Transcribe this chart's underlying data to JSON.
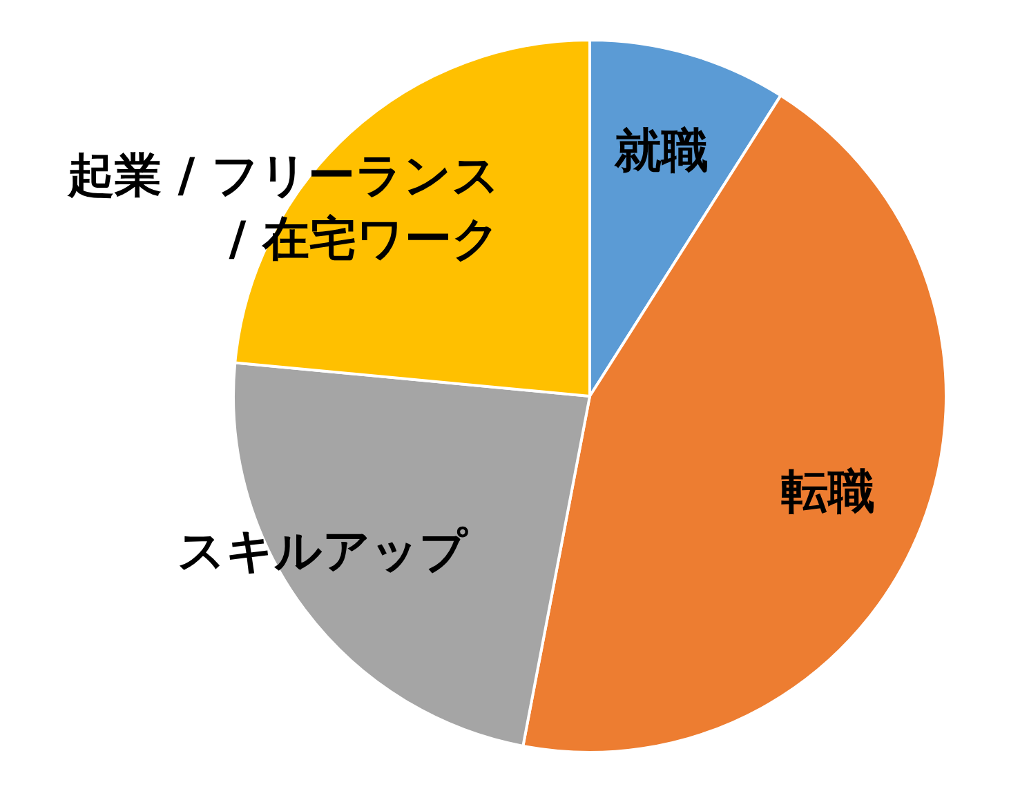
{
  "chart_data": {
    "type": "pie",
    "categories": [
      "就職",
      "転職",
      "スキルアップ",
      "起業 / フリーランス / 在宅ワーク"
    ],
    "values": [
      9,
      44,
      23.5,
      23.5
    ],
    "colors": [
      "#5b9bd5",
      "#ed7d31",
      "#a5a5a5",
      "#ffc000"
    ]
  }
}
